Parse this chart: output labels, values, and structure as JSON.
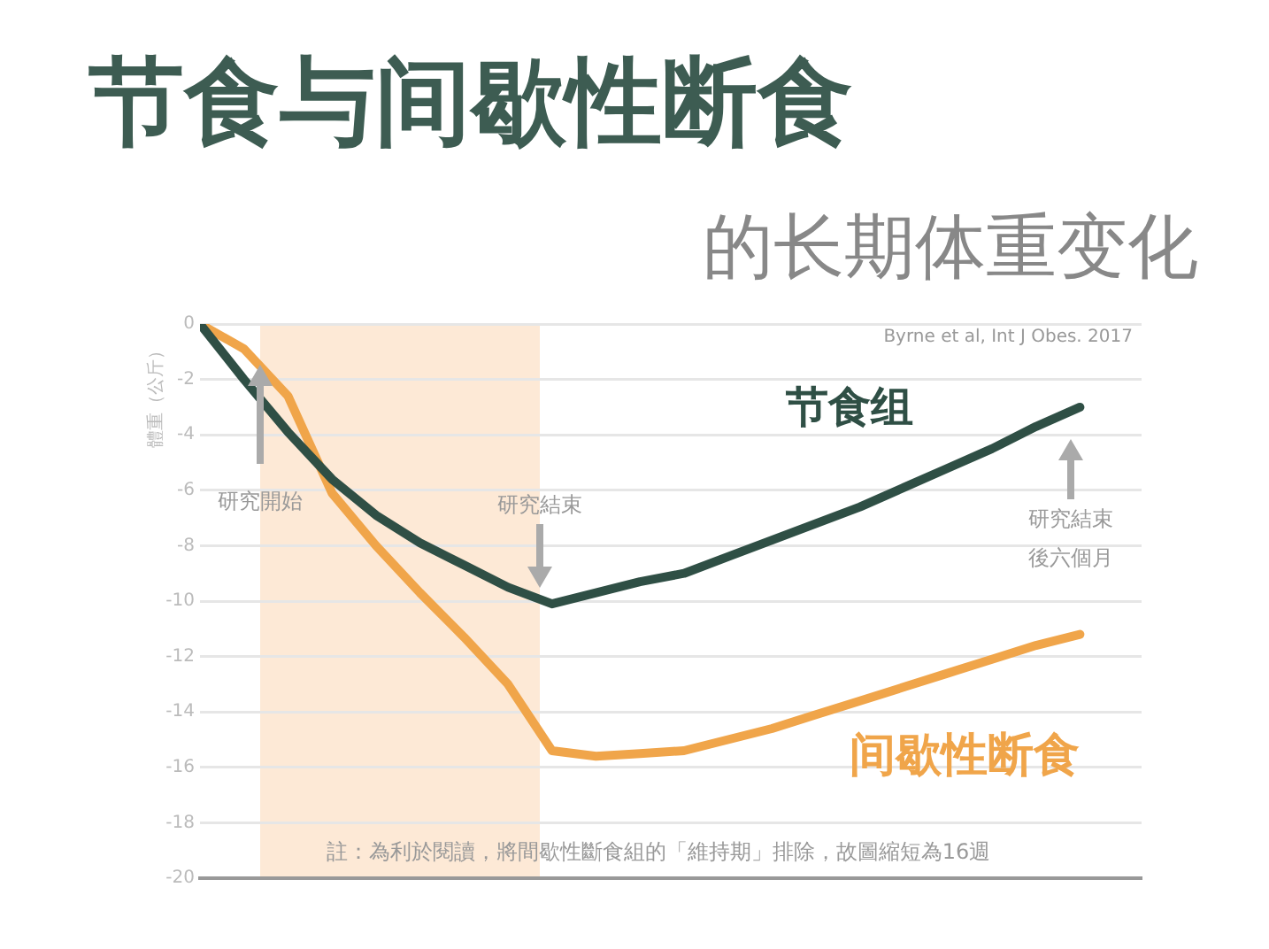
{
  "chart_data": {
    "type": "line",
    "title": "节食与间歇性断食",
    "subtitle": "的长期体重变化",
    "ylabel": "體重（公斤）",
    "categories": [
      null,
      null,
      null,
      null,
      null,
      null,
      null,
      null,
      null,
      null,
      null,
      null,
      null,
      null,
      null,
      null,
      null,
      null,
      null,
      null,
      null
    ],
    "series": [
      {
        "name": "节食组",
        "color": "#2f4f45",
        "values": [
          0,
          -2.0,
          -3.9,
          -5.6,
          -6.9,
          -7.9,
          -8.7,
          -9.5,
          -10.1,
          -9.7,
          -9.3,
          -9.0,
          -8.4,
          -7.8,
          -7.2,
          -6.6,
          -5.9,
          -5.2,
          -4.5,
          -3.7,
          -3.0
        ]
      },
      {
        "name": "间歇性断食",
        "color": "#f0a54a",
        "values": [
          0,
          -0.9,
          -2.6,
          -6.1,
          -8.0,
          -9.7,
          -11.3,
          -13.0,
          -15.4,
          -15.6,
          -15.5,
          -15.4,
          -15.0,
          -14.6,
          -14.1,
          -13.6,
          -13.1,
          -12.6,
          -12.1,
          -11.6,
          -11.2
        ]
      }
    ],
    "ylim": [
      -20,
      0
    ],
    "yticks": [
      0,
      -2,
      -4,
      -6,
      -8,
      -10,
      -12,
      -14,
      -16,
      -18,
      -20
    ],
    "grid": "y",
    "legend": false,
    "annotations": [
      "研究開始",
      "研究結束",
      "研究結束後六個月",
      "Byrne et al, Int J Obes. 2017",
      "註：為利於閱讀，將間歇性斷食組的「維持期」排除，故圖縮短為16週"
    ]
  }
}
